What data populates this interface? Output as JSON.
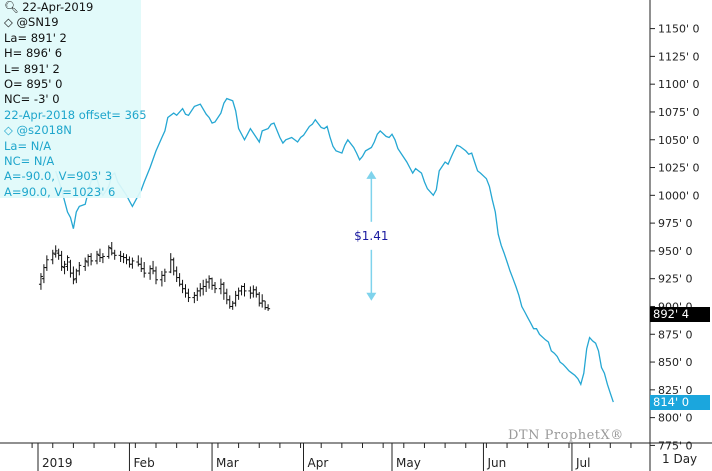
{
  "info": {
    "date": "22-Apr-2019",
    "symbol1": "@SN19",
    "last": "La= 891' 2",
    "high": "H= 896' 6",
    "low": "L= 891' 2",
    "open": "O= 895' 0",
    "netchange": "NC= -3' 0",
    "offset": "22-Apr-2018 offset= 365",
    "symbol2": "@s2018N",
    "last2": "La= N/A",
    "netchange2": "NC= N/A",
    "a1": "A=-90.0, V=903' 3",
    "a2": "A=90.0, V=1023' 6"
  },
  "colors": {
    "current": "#111111",
    "prior": "#25a7d3",
    "arrow": "#7fd3ec",
    "annotation": "#1a1aa0",
    "tag_current": "#000000",
    "tag_prior": "#1ba6dd"
  },
  "price_tags": {
    "current": "892' 4",
    "prior": "814' 0"
  },
  "watermark": "DTN ProphetX®",
  "interval": "1 Day",
  "chart_data": {
    "type": "line",
    "title": "",
    "xlabel": "",
    "ylabel": "",
    "ylim": [
      765,
      1157
    ],
    "y_ticks": [
      775,
      800,
      825,
      850,
      875,
      900,
      925,
      950,
      975,
      1000,
      1025,
      1050,
      1075,
      1100,
      1125,
      1150
    ],
    "y_tick_labels": [
      "775' 0",
      "800' 0",
      "825' 0",
      "850' 0",
      "875' 0",
      "900' 0",
      "925' 0",
      "950' 0",
      "975' 0",
      "1000' 0",
      "1025' 0",
      "1050' 0",
      "1075' 0",
      "1100' 0",
      "1125' 0",
      "1150' 0"
    ],
    "x_labels": [
      "2019",
      "Feb",
      "Mar",
      "Apr",
      "May",
      "Jun",
      "Jul"
    ],
    "x_label_days": [
      0,
      31,
      59,
      90,
      120,
      151,
      181
    ],
    "x_range_days": [
      -2,
      212
    ],
    "annotation": {
      "text": "$1.41",
      "day": 113,
      "from": 1023.75,
      "to": 903.4
    },
    "series": [
      {
        "name": "@s2018N",
        "style": "line",
        "points": [
          [
            6,
            1022
          ],
          [
            8,
            1005
          ],
          [
            10,
            985
          ],
          [
            11,
            980
          ],
          [
            12,
            970
          ],
          [
            13,
            985
          ],
          [
            14,
            990
          ],
          [
            16,
            992
          ],
          [
            17,
            1003
          ],
          [
            18,
            1013
          ],
          [
            20,
            1015
          ],
          [
            21,
            1005
          ],
          [
            22,
            1000
          ],
          [
            24,
            1008
          ],
          [
            25,
            1018
          ],
          [
            26,
            1020
          ],
          [
            27,
            1012
          ],
          [
            28,
            1008
          ],
          [
            30,
            1000
          ],
          [
            31,
            995
          ],
          [
            32,
            990
          ],
          [
            34,
            1000
          ],
          [
            35,
            1005
          ],
          [
            36,
            1012
          ],
          [
            38,
            1025
          ],
          [
            40,
            1040
          ],
          [
            42,
            1052
          ],
          [
            43,
            1058
          ],
          [
            44,
            1070
          ],
          [
            46,
            1074
          ],
          [
            47,
            1072
          ],
          [
            49,
            1078
          ],
          [
            50,
            1073
          ],
          [
            51,
            1072
          ],
          [
            53,
            1080
          ],
          [
            55,
            1082
          ],
          [
            57,
            1073
          ],
          [
            58,
            1070
          ],
          [
            59,
            1065
          ],
          [
            60,
            1066
          ],
          [
            62,
            1074
          ],
          [
            63,
            1083
          ],
          [
            64,
            1087
          ],
          [
            66,
            1085
          ],
          [
            67,
            1076
          ],
          [
            68,
            1060
          ],
          [
            70,
            1050
          ],
          [
            71,
            1055
          ],
          [
            72,
            1060
          ],
          [
            74,
            1052
          ],
          [
            75,
            1048
          ],
          [
            76,
            1058
          ],
          [
            78,
            1060
          ],
          [
            79,
            1064
          ],
          [
            80,
            1065
          ],
          [
            82,
            1052
          ],
          [
            83,
            1047
          ],
          [
            84,
            1050
          ],
          [
            86,
            1052
          ],
          [
            88,
            1048
          ],
          [
            89,
            1052
          ],
          [
            90,
            1054
          ],
          [
            92,
            1062
          ],
          [
            93,
            1064
          ],
          [
            94,
            1068
          ],
          [
            96,
            1061
          ],
          [
            97,
            1060
          ],
          [
            98,
            1062
          ],
          [
            99,
            1052
          ],
          [
            100,
            1044
          ],
          [
            101,
            1040
          ],
          [
            103,
            1038
          ],
          [
            104,
            1045
          ],
          [
            105,
            1050
          ],
          [
            107,
            1043
          ],
          [
            108,
            1038
          ],
          [
            109,
            1032
          ],
          [
            110,
            1035
          ],
          [
            111,
            1040
          ],
          [
            113,
            1043
          ],
          [
            114,
            1048
          ],
          [
            115,
            1055
          ],
          [
            116,
            1058
          ],
          [
            118,
            1053
          ],
          [
            119,
            1052
          ],
          [
            120,
            1055
          ],
          [
            121,
            1050
          ],
          [
            122,
            1042
          ],
          [
            123,
            1038
          ],
          [
            125,
            1030
          ],
          [
            126,
            1025
          ],
          [
            127,
            1020
          ],
          [
            128,
            1024
          ],
          [
            130,
            1020
          ],
          [
            131,
            1012
          ],
          [
            132,
            1006
          ],
          [
            134,
            1000
          ],
          [
            135,
            1005
          ],
          [
            136,
            1022
          ],
          [
            138,
            1030
          ],
          [
            139,
            1028
          ],
          [
            140,
            1034
          ],
          [
            141,
            1040
          ],
          [
            142,
            1045
          ],
          [
            143,
            1044
          ],
          [
            145,
            1040
          ],
          [
            146,
            1037
          ],
          [
            147,
            1038
          ],
          [
            148,
            1030
          ],
          [
            149,
            1022
          ],
          [
            150,
            1020
          ],
          [
            152,
            1015
          ],
          [
            153,
            1008
          ],
          [
            154,
            996
          ],
          [
            155,
            985
          ],
          [
            156,
            965
          ],
          [
            157,
            955
          ],
          [
            158,
            948
          ],
          [
            159,
            940
          ],
          [
            160,
            932
          ],
          [
            161,
            925
          ],
          [
            162,
            918
          ],
          [
            163,
            910
          ],
          [
            164,
            900
          ],
          [
            165,
            895
          ],
          [
            166,
            890
          ],
          [
            167,
            885
          ],
          [
            168,
            880
          ],
          [
            169,
            880
          ],
          [
            170,
            875
          ],
          [
            172,
            870
          ],
          [
            173,
            868
          ],
          [
            174,
            860
          ],
          [
            175,
            858
          ],
          [
            176,
            855
          ],
          [
            177,
            850
          ],
          [
            178,
            848
          ],
          [
            179,
            845
          ],
          [
            180,
            842
          ],
          [
            181,
            840
          ],
          [
            182,
            838
          ],
          [
            183,
            835
          ],
          [
            184,
            830
          ],
          [
            185,
            840
          ],
          [
            186,
            862
          ],
          [
            187,
            872
          ],
          [
            188,
            869
          ],
          [
            189,
            867
          ],
          [
            190,
            860
          ],
          [
            191,
            845
          ],
          [
            192,
            840
          ],
          [
            193,
            830
          ],
          [
            194,
            822
          ],
          [
            195,
            814
          ]
        ]
      },
      {
        "name": "@SN19",
        "style": "ohlc",
        "bars": [
          [
            1,
            930,
            915,
            920,
            927
          ],
          [
            2,
            938,
            921,
            925,
            935
          ],
          [
            3,
            946,
            932,
            935,
            942
          ],
          [
            5,
            951,
            938,
            942,
            948
          ],
          [
            6,
            955,
            944,
            947,
            950
          ],
          [
            7,
            952,
            942,
            948,
            946
          ],
          [
            8,
            950,
            932,
            946,
            936
          ],
          [
            9,
            941,
            929,
            935,
            938
          ],
          [
            10,
            946,
            932,
            936,
            944
          ],
          [
            11,
            942,
            926,
            940,
            930
          ],
          [
            12,
            936,
            920,
            930,
            924
          ],
          [
            13,
            934,
            921,
            925,
            932
          ],
          [
            14,
            940,
            928,
            932,
            937
          ],
          [
            16,
            944,
            932,
            936,
            941
          ],
          [
            17,
            947,
            936,
            940,
            945
          ],
          [
            18,
            948,
            937,
            945,
            941
          ],
          [
            20,
            950,
            938,
            941,
            947
          ],
          [
            21,
            952,
            940,
            946,
            944
          ],
          [
            22,
            948,
            939,
            944,
            945
          ],
          [
            24,
            955,
            943,
            945,
            953
          ],
          [
            25,
            958,
            946,
            952,
            948
          ],
          [
            26,
            951,
            942,
            948,
            946
          ],
          [
            28,
            950,
            940,
            946,
            945
          ],
          [
            29,
            948,
            939,
            945,
            944
          ],
          [
            30,
            947,
            938,
            944,
            942
          ],
          [
            31,
            945,
            935,
            942,
            938
          ],
          [
            32,
            944,
            934,
            938,
            941
          ],
          [
            34,
            946,
            936,
            940,
            938
          ],
          [
            35,
            944,
            931,
            938,
            934
          ],
          [
            36,
            940,
            926,
            934,
            930
          ],
          [
            38,
            937,
            924,
            930,
            934
          ],
          [
            39,
            941,
            929,
            934,
            932
          ],
          [
            40,
            936,
            920,
            932,
            924
          ],
          [
            42,
            932,
            918,
            924,
            928
          ],
          [
            43,
            934,
            922,
            928,
            931
          ],
          [
            45,
            948,
            930,
            931,
            942
          ],
          [
            46,
            944,
            928,
            942,
            932
          ],
          [
            47,
            936,
            922,
            932,
            926
          ],
          [
            48,
            930,
            918,
            926,
            920
          ],
          [
            49,
            924,
            912,
            920,
            916
          ],
          [
            50,
            920,
            908,
            916,
            912
          ],
          [
            51,
            916,
            904,
            912,
            908
          ],
          [
            53,
            913,
            903,
            908,
            910
          ],
          [
            54,
            917,
            905,
            910,
            914
          ],
          [
            55,
            921,
            909,
            914,
            916
          ],
          [
            56,
            924,
            910,
            916,
            918
          ],
          [
            57,
            925,
            913,
            918,
            922
          ],
          [
            58,
            928,
            916,
            922,
            925
          ],
          [
            59,
            926,
            915,
            925,
            919
          ],
          [
            60,
            922,
            912,
            919,
            916
          ],
          [
            62,
            925,
            911,
            916,
            920
          ],
          [
            63,
            922,
            906,
            920,
            912
          ],
          [
            64,
            916,
            902,
            912,
            906
          ],
          [
            65,
            910,
            898,
            906,
            900
          ],
          [
            66,
            905,
            897,
            900,
            903
          ],
          [
            67,
            914,
            900,
            903,
            910
          ],
          [
            68,
            917,
            906,
            910,
            914
          ],
          [
            69,
            919,
            910,
            914,
            918
          ],
          [
            70,
            921,
            909,
            918,
            914
          ],
          [
            72,
            918,
            907,
            914,
            912
          ],
          [
            73,
            919,
            908,
            912,
            915
          ],
          [
            74,
            918,
            908,
            915,
            911
          ],
          [
            75,
            913,
            900,
            911,
            903
          ],
          [
            76,
            911,
            899,
            903,
            905
          ],
          [
            77,
            905,
            897,
            905,
            899
          ],
          [
            78,
            902,
            896,
            899,
            898
          ]
        ]
      }
    ]
  }
}
